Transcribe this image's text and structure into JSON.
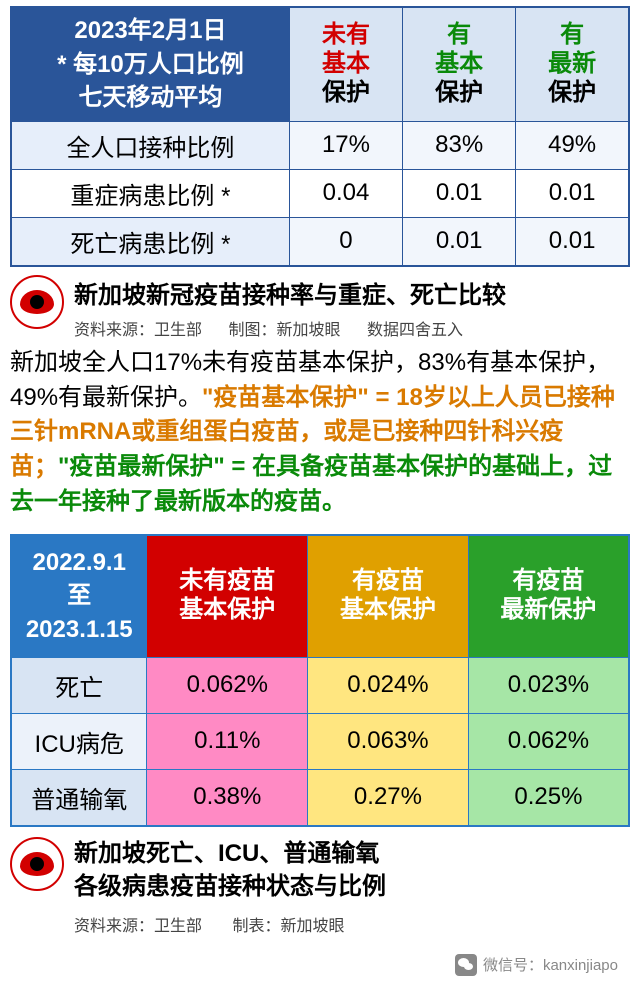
{
  "colors": {
    "tableBorder1": "#2a5599",
    "tableBorder2": "#2a78c4",
    "headerBlue1": "#2a5599",
    "headerBlue2": "#2a78c4",
    "red": "#d20000",
    "green": "#0a8a0a",
    "orange": "#d97a00",
    "cellLightBlue": "#d8e4f3",
    "pink": "#ff8ac4",
    "yellow": "#ffe680",
    "lightGreen": "#a6e6a6",
    "headOrange": "#e0a000",
    "headGreen": "#2aa02a"
  },
  "table1": {
    "header_left_l1": "2023年2月1日",
    "header_left_l2": "* 每10万人口比例",
    "header_left_l3": "七天移动平均",
    "cols": [
      {
        "l1": "未有",
        "l2": "基本",
        "l3": "保护"
      },
      {
        "l1": "有",
        "l2": "基本",
        "l3": "保护"
      },
      {
        "l1": "有",
        "l2": "最新",
        "l3": "保护"
      }
    ],
    "rows": [
      {
        "label": "全人口接种比例",
        "vals": [
          "17%",
          "83%",
          "49%"
        ]
      },
      {
        "label": "重症病患比例 *",
        "vals": [
          "0.04",
          "0.01",
          "0.01"
        ]
      },
      {
        "label": "死亡病患比例 *",
        "vals": [
          "0",
          "0.01",
          "0.01"
        ]
      }
    ]
  },
  "caption1": {
    "title": "新加坡新冠疫苗接种率与重症、死亡比较",
    "meta1": "资料来源：卫生部",
    "meta2": "制图：新加坡眼",
    "meta3": "数据四舍五入"
  },
  "paragraph": {
    "p1": "新加坡全人口17%未有疫苗基本保护，83%有基本保护，49%有最新保护。",
    "p2a": "\"疫苗基本保护\" = 18岁以上人员已接种三针mRNA或重组蛋白疫苗，或是已接种四针科兴疫苗；",
    "p2b": "\"疫苗最新保护\" = 在具备疫苗基本保护的基础上，过去一年接种了最新版本的疫苗。"
  },
  "table2": {
    "header_left_l1": "2022.9.1",
    "header_left_l2": "至",
    "header_left_l3": "2023.1.15",
    "cols": [
      {
        "l1": "未有疫苗",
        "l2": "基本保护"
      },
      {
        "l1": "有疫苗",
        "l2": "基本保护"
      },
      {
        "l1": "有疫苗",
        "l2": "最新保护"
      }
    ],
    "rows": [
      {
        "label": "死亡",
        "vals": [
          "0.062%",
          "0.024%",
          "0.023%"
        ]
      },
      {
        "label": "ICU病危",
        "vals": [
          "0.11%",
          "0.063%",
          "0.062%"
        ]
      },
      {
        "label": "普通输氧",
        "vals": [
          "0.38%",
          "0.27%",
          "0.25%"
        ]
      }
    ]
  },
  "caption2": {
    "title_l1": "新加坡死亡、ICU、普通输氧",
    "title_l2": "各级病患疫苗接种状态与比例",
    "meta1": "资料来源：卫生部",
    "meta2": "制表：新加坡眼"
  },
  "footer": {
    "label": "微信号：kanxinjiapo"
  }
}
